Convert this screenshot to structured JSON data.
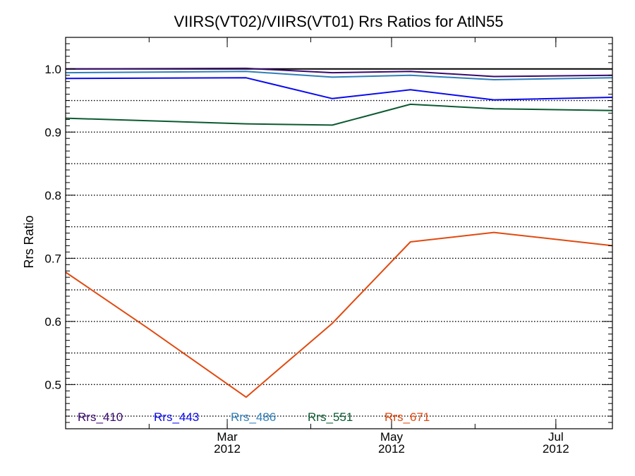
{
  "chart_data": {
    "type": "line",
    "title": "VIIRS(VT02)/VIIRS(VT01)  Rrs Ratios for AtlN55",
    "xlabel": "",
    "ylabel": "Rrs Ratio",
    "ylim": [
      0.43,
      1.05
    ],
    "xlim": [
      "2012-01-01",
      "2012-07-22"
    ],
    "y_ticks": [
      "0.5",
      "0.6",
      "0.7",
      "0.8",
      "0.9",
      "1.0"
    ],
    "y_tick_values": [
      0.5,
      0.6,
      0.7,
      0.8,
      0.9,
      1.0
    ],
    "x_ticks": [
      {
        "date": "2012-03-01",
        "month": "Mar",
        "year": "2012"
      },
      {
        "date": "2012-05-01",
        "month": "May",
        "year": "2012"
      },
      {
        "date": "2012-07-01",
        "month": "Jul",
        "year": "2012"
      }
    ],
    "grid": "dotted horizontal at every 0.05",
    "legend_placement": "bottom",
    "reference_line": {
      "y": 1.0,
      "color": "#000000"
    },
    "series": [
      {
        "name": "Rrs_410",
        "color": "#3a0a6e",
        "points": [
          [
            "2012-01-01",
            1.0
          ],
          [
            "2012-03-08",
            1.001
          ],
          [
            "2012-04-09",
            0.994
          ],
          [
            "2012-05-08",
            0.996
          ],
          [
            "2012-06-08",
            0.988
          ],
          [
            "2012-07-22",
            0.99
          ]
        ]
      },
      {
        "name": "Rrs_443",
        "color": "#0a0af0",
        "points": [
          [
            "2012-01-01",
            0.985
          ],
          [
            "2012-03-08",
            0.986
          ],
          [
            "2012-04-09",
            0.953
          ],
          [
            "2012-05-08",
            0.967
          ],
          [
            "2012-06-08",
            0.951
          ],
          [
            "2012-07-22",
            0.955
          ]
        ]
      },
      {
        "name": "Rrs_486",
        "color": "#2f7fb9",
        "points": [
          [
            "2012-01-01",
            0.994
          ],
          [
            "2012-03-08",
            0.996
          ],
          [
            "2012-04-09",
            0.987
          ],
          [
            "2012-05-08",
            0.99
          ],
          [
            "2012-06-08",
            0.983
          ],
          [
            "2012-07-22",
            0.986
          ]
        ]
      },
      {
        "name": "Rrs_551",
        "color": "#0b5a30",
        "points": [
          [
            "2012-01-01",
            0.922
          ],
          [
            "2012-03-08",
            0.913
          ],
          [
            "2012-04-09",
            0.911
          ],
          [
            "2012-05-08",
            0.944
          ],
          [
            "2012-06-08",
            0.937
          ],
          [
            "2012-07-22",
            0.934
          ]
        ]
      },
      {
        "name": "Rrs_671",
        "color": "#e04a10",
        "points": [
          [
            "2012-01-01",
            0.678
          ],
          [
            "2012-02-01",
            0.588
          ],
          [
            "2012-03-08",
            0.48
          ],
          [
            "2012-04-09",
            0.597
          ],
          [
            "2012-05-08",
            0.726
          ],
          [
            "2012-06-08",
            0.741
          ],
          [
            "2012-07-22",
            0.72
          ]
        ]
      }
    ]
  }
}
